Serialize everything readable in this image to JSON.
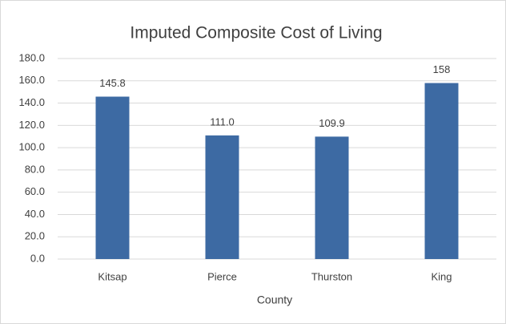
{
  "chart_data": {
    "type": "bar",
    "title": "Imputed Composite Cost of Living",
    "x_label": "County",
    "categories": [
      "Kitsap",
      "Pierce",
      "Thurston",
      "King"
    ],
    "values": [
      145.8,
      111.0,
      109.9,
      158
    ],
    "value_labels": [
      "145.8",
      "111.0",
      "109.9",
      "158"
    ],
    "color": "#3d6aa3",
    "ylim": [
      0,
      180
    ],
    "yticks": [
      {
        "value": 0,
        "label": "0.0"
      },
      {
        "value": 20,
        "label": "20.0"
      },
      {
        "value": 40,
        "label": "40.0"
      },
      {
        "value": 60,
        "label": "60.0"
      },
      {
        "value": 80,
        "label": "80.0"
      },
      {
        "value": 100,
        "label": "100.0"
      },
      {
        "value": 120,
        "label": "120.0"
      },
      {
        "value": 140,
        "label": "140.0"
      },
      {
        "value": 160,
        "label": "160.0"
      },
      {
        "value": 180,
        "label": "180.0"
      }
    ],
    "grid": true
  }
}
